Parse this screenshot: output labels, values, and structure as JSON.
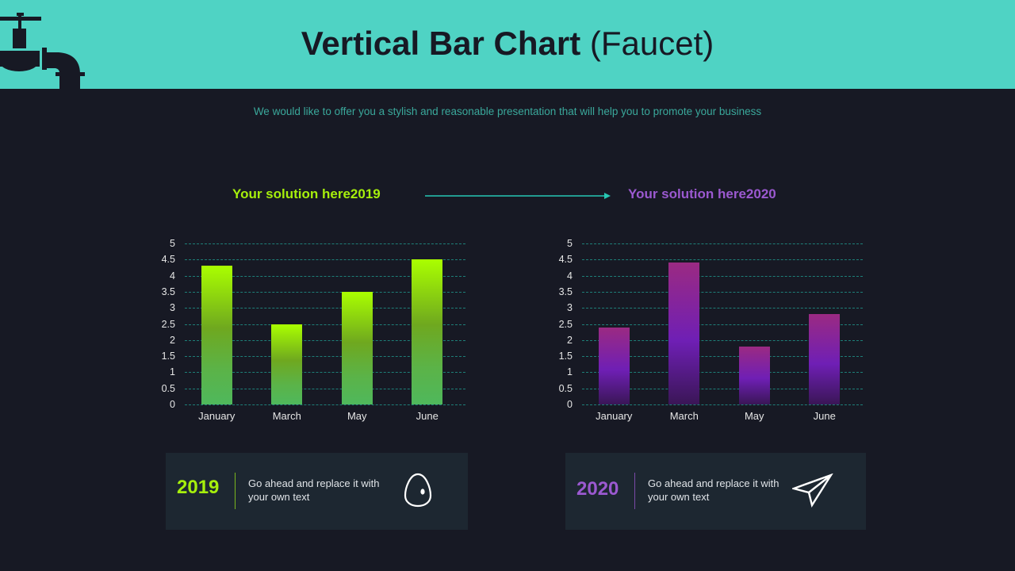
{
  "header": {
    "title_bold": "Vertical Bar Chart",
    "title_light": "(Faucet)",
    "icon": "faucet-icon",
    "background_color": "#4fd3c4"
  },
  "subtitle": "We would like to offer you a stylish and reasonable presentation that will help you to promote your business",
  "series_labels": {
    "left": "Your solution here2019",
    "right": "Your solution here2020",
    "left_color": "#a6ef0c",
    "right_color": "#9b59d0",
    "arrow": "arrow-right-icon"
  },
  "cards": [
    {
      "year": "2019",
      "text": "Go ahead and replace it with your own text",
      "icon": "egg-icon",
      "color": "#a6ef0c"
    },
    {
      "year": "2020",
      "text": "Go ahead and replace it with your own text",
      "icon": "paper-plane-icon",
      "color": "#9b59d0"
    }
  ],
  "chart_data": [
    {
      "type": "bar",
      "title": "Your solution here2019",
      "categories": [
        "January",
        "March",
        "May",
        "June"
      ],
      "values": [
        4.3,
        2.5,
        3.5,
        4.5
      ],
      "xlabel": "",
      "ylabel": "",
      "ylim": [
        0,
        5
      ],
      "yticks": [
        "0",
        "0.5",
        "1",
        "1.5",
        "2",
        "2.5",
        "3",
        "3.5",
        "4",
        "4.5",
        "5"
      ],
      "grid": true,
      "legend": "none",
      "color_top": "#aaff00",
      "color_bottom": "#4fb85c"
    },
    {
      "type": "bar",
      "title": "Your solution here2020",
      "categories": [
        "January",
        "March",
        "May",
        "June"
      ],
      "values": [
        2.4,
        4.4,
        1.8,
        2.8
      ],
      "xlabel": "",
      "ylabel": "",
      "ylim": [
        0,
        5
      ],
      "yticks": [
        "0",
        "0.5",
        "1",
        "1.5",
        "2",
        "2.5",
        "3",
        "3.5",
        "4",
        "4.5",
        "5"
      ],
      "grid": true,
      "legend": "none",
      "color_top": "#9b2a82",
      "color_bottom": "#3a1656"
    }
  ]
}
